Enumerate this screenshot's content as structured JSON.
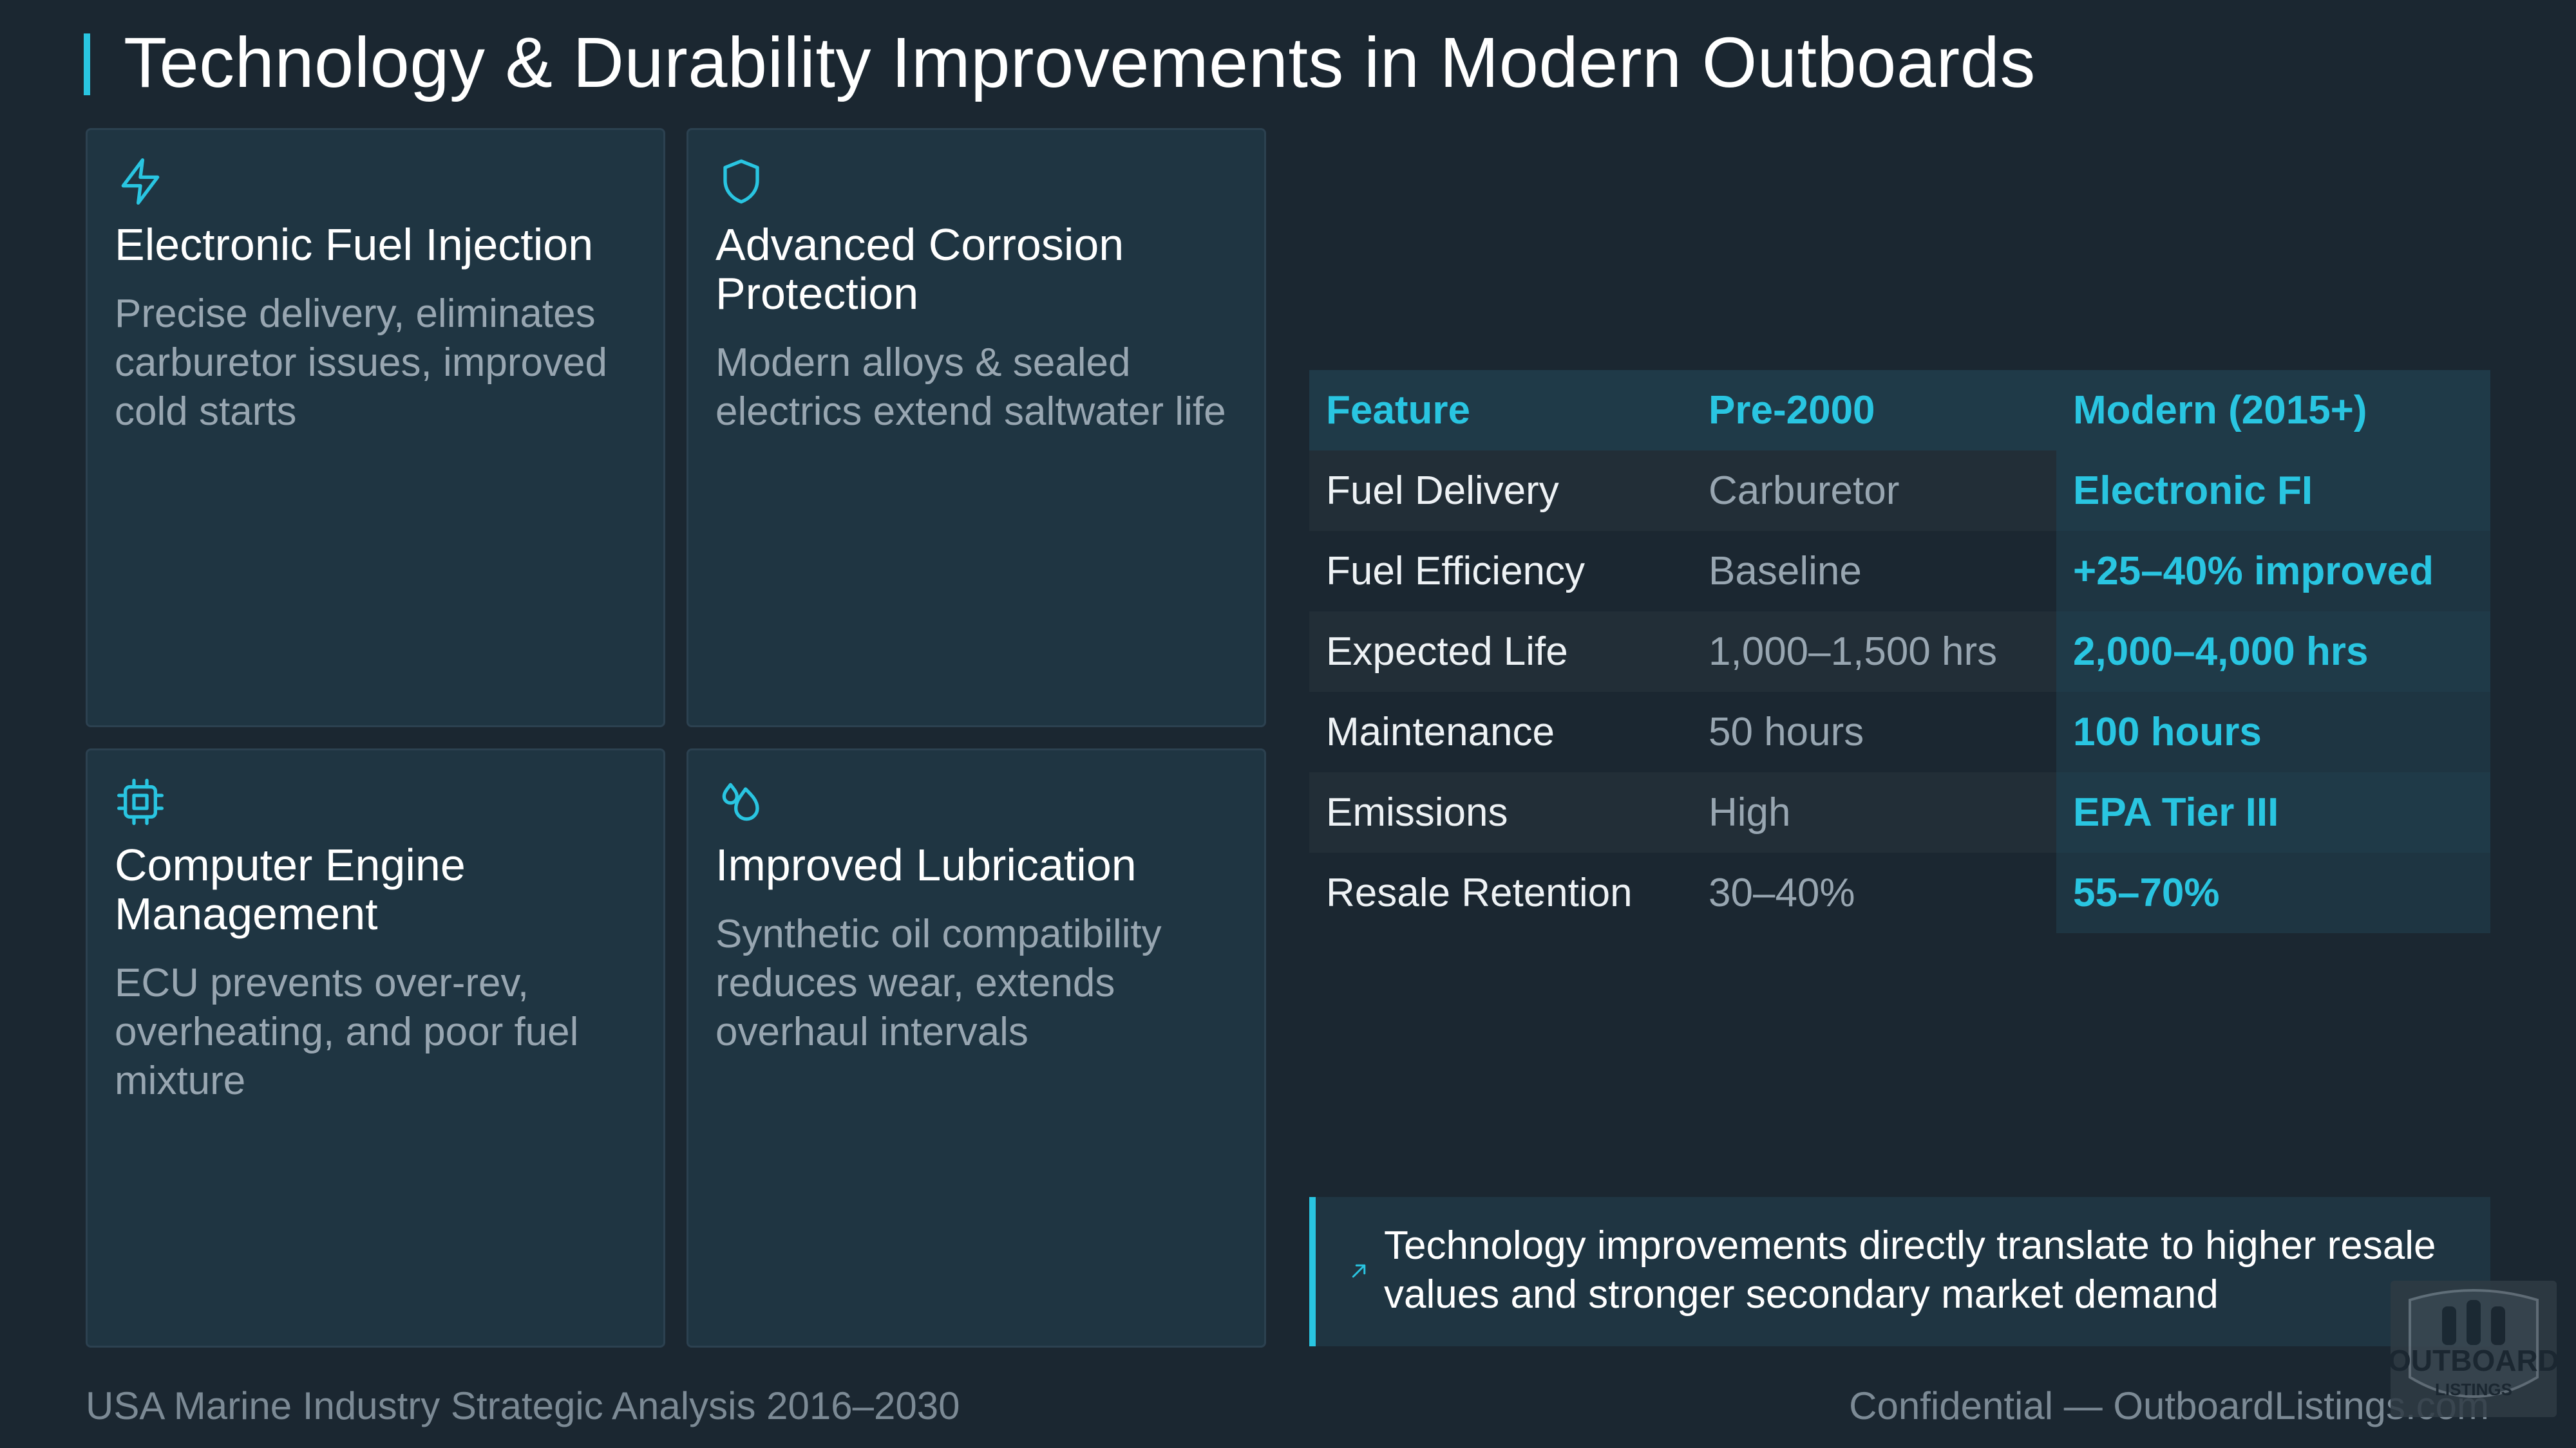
{
  "title": "Technology & Durability Improvements in Modern Outboards",
  "accent_color": "#29c5e1",
  "cards": [
    {
      "icon": "lightning-icon",
      "title": "Electronic Fuel Injection",
      "desc": "Precise delivery, eliminates carburetor issues, improved cold starts"
    },
    {
      "icon": "shield-icon",
      "title": "Advanced Corrosion Protection",
      "desc": "Modern alloys & sealed electrics extend saltwater life"
    },
    {
      "icon": "chip-icon",
      "title": "Computer Engine Management",
      "desc": "ECU prevents over-rev, overheating, and poor fuel mixture"
    },
    {
      "icon": "droplets-icon",
      "title": "Improved Lubrication",
      "desc": "Synthetic oil compatibility reduces wear, extends overhaul intervals"
    }
  ],
  "table": {
    "headers": [
      "Feature",
      "Pre-2000",
      "Modern (2015+)"
    ],
    "rows": [
      [
        "Fuel Delivery",
        "Carburetor",
        "Electronic FI"
      ],
      [
        "Fuel Efficiency",
        "Baseline",
        "+25–40% improved"
      ],
      [
        "Expected Life",
        "1,000–1,500 hrs",
        "2,000–4,000 hrs"
      ],
      [
        "Maintenance",
        "50 hours",
        "100 hours"
      ],
      [
        "Emissions",
        "High",
        "EPA Tier III"
      ],
      [
        "Resale Retention",
        "30–40%",
        "55–70%"
      ]
    ]
  },
  "callout": {
    "icon": "trend-up-arrow-icon",
    "text": "Technology improvements directly translate to higher resale values and stronger secondary market demand"
  },
  "footer": {
    "left": "USA Marine Industry Strategic Analysis 2016–2030",
    "right": "Confidential — OutboardListings.com"
  },
  "logo": {
    "line1": "OUTBOARD",
    "line2": "LISTINGS"
  }
}
